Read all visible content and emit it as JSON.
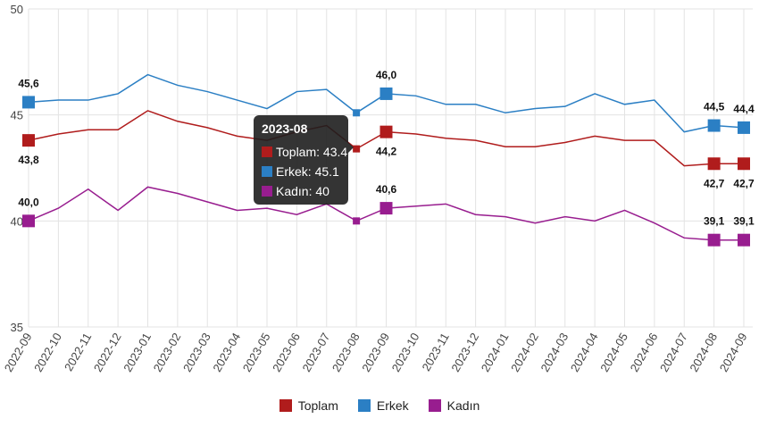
{
  "chart_data": {
    "type": "line",
    "title": "",
    "xlabel": "",
    "ylabel": "",
    "ylim": [
      35,
      50
    ],
    "yticks": [
      "35",
      "40",
      "45",
      "50"
    ],
    "yticks_values": [
      35,
      40,
      45,
      50
    ],
    "grid": true,
    "legend_position": "bottom",
    "categories": [
      "2022-09",
      "2022-10",
      "2022-11",
      "2022-12",
      "2023-01",
      "2023-02",
      "2023-03",
      "2023-04",
      "2023-05",
      "2023-06",
      "2023-07",
      "2023-08",
      "2023-09",
      "2023-10",
      "2023-11",
      "2023-12",
      "2024-01",
      "2024-02",
      "2024-03",
      "2024-04",
      "2024-05",
      "2024-06",
      "2024-07",
      "2024-08",
      "2024-09"
    ],
    "series": [
      {
        "name": "Toplam",
        "color": "#b01c1c",
        "values": [
          43.8,
          44.1,
          44.3,
          44.3,
          45.2,
          44.7,
          44.4,
          44.0,
          43.8,
          44.2,
          44.5,
          43.4,
          44.2,
          44.1,
          43.9,
          43.8,
          43.5,
          43.5,
          43.7,
          44.0,
          43.8,
          43.8,
          42.6,
          42.7,
          42.7
        ],
        "labels": {
          "0": "43,8",
          "12": "44,2",
          "23": "42,7",
          "24": "42,7"
        },
        "label_pos": "below"
      },
      {
        "name": "Erkek",
        "color": "#2b7fc4",
        "values": [
          45.6,
          45.7,
          45.7,
          46.0,
          46.9,
          46.4,
          46.1,
          45.7,
          45.3,
          46.1,
          46.2,
          45.1,
          46.0,
          45.9,
          45.5,
          45.5,
          45.1,
          45.3,
          45.4,
          46.0,
          45.5,
          45.7,
          44.2,
          44.5,
          44.4
        ],
        "labels": {
          "0": "45,6",
          "12": "46,0",
          "23": "44,5",
          "24": "44,4"
        },
        "label_pos": "above"
      },
      {
        "name": "Kadın",
        "color": "#981d8f",
        "values": [
          40.0,
          40.6,
          41.5,
          40.5,
          41.6,
          41.3,
          40.9,
          40.5,
          40.6,
          40.3,
          40.8,
          40.0,
          40.6,
          40.7,
          40.8,
          40.3,
          40.2,
          39.9,
          40.2,
          40.0,
          40.5,
          39.9,
          39.2,
          39.1,
          39.1
        ],
        "labels": {
          "0": "40,0",
          "12": "40,6",
          "23": "39,1",
          "24": "39,1"
        },
        "label_pos": "above"
      }
    ],
    "marked_indices": [
      0,
      12,
      23,
      24
    ],
    "hover_index": 11
  },
  "tooltip": {
    "title": "2023-08",
    "rows": [
      "Toplam: 43.4",
      "Erkek: 45.1",
      "Kadın: 40"
    ]
  }
}
